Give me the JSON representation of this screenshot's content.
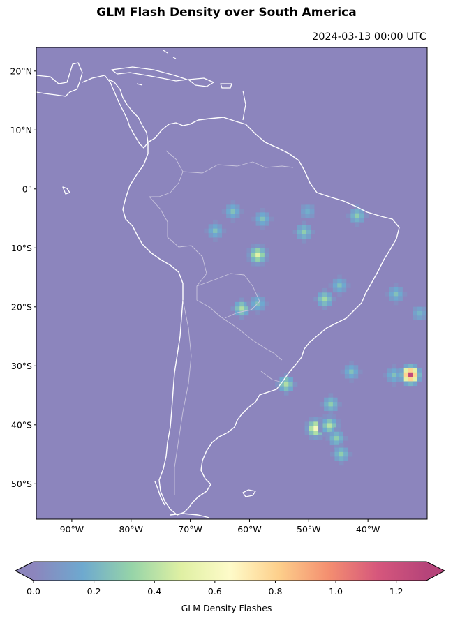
{
  "title": "GLM Flash Density over South America",
  "subtitle": "2024-03-13 00:00 UTC",
  "map": {
    "extent": {
      "lon_min": -96,
      "lon_max": -30,
      "lat_min": -56,
      "lat_max": 24
    },
    "background_color": "#8c85bd",
    "coastline_color": "#ffffff",
    "border_color": "#c9c5dd",
    "lat_ticks": [
      {
        "value": 20,
        "label": "20°N"
      },
      {
        "value": 10,
        "label": "10°N"
      },
      {
        "value": 0,
        "label": "0°"
      },
      {
        "value": -10,
        "label": "10°S"
      },
      {
        "value": -20,
        "label": "20°S"
      },
      {
        "value": -30,
        "label": "30°S"
      },
      {
        "value": -40,
        "label": "40°S"
      },
      {
        "value": -50,
        "label": "50°S"
      }
    ],
    "lon_ticks": [
      {
        "value": -90,
        "label": "90°W"
      },
      {
        "value": -80,
        "label": "80°W"
      },
      {
        "value": -70,
        "label": "70°W"
      },
      {
        "value": -60,
        "label": "60°W"
      },
      {
        "value": -50,
        "label": "50°W"
      },
      {
        "value": -40,
        "label": "40°W"
      }
    ],
    "flash_cells": [
      {
        "lon": -62.8,
        "lat": -3.8,
        "value": 0.25
      },
      {
        "lon": -57.8,
        "lat": -5.1,
        "value": 0.25
      },
      {
        "lon": -65.8,
        "lat": -7.1,
        "value": 0.25
      },
      {
        "lon": -58.6,
        "lat": -11.2,
        "value": 0.5
      },
      {
        "lon": -50.2,
        "lat": -3.8,
        "value": 0.18
      },
      {
        "lon": -50.8,
        "lat": -7.3,
        "value": 0.3
      },
      {
        "lon": -41.8,
        "lat": -4.5,
        "value": 0.3
      },
      {
        "lon": -44.8,
        "lat": -16.4,
        "value": 0.25
      },
      {
        "lon": -35.3,
        "lat": -17.8,
        "value": 0.25
      },
      {
        "lon": -31.3,
        "lat": -21.1,
        "value": 0.2
      },
      {
        "lon": -47.3,
        "lat": -18.7,
        "value": 0.35
      },
      {
        "lon": -61.3,
        "lat": -20.3,
        "value": 0.38
      },
      {
        "lon": -58.6,
        "lat": -19.5,
        "value": 0.25
      },
      {
        "lon": -42.8,
        "lat": -31.0,
        "value": 0.25
      },
      {
        "lon": -35.6,
        "lat": -31.6,
        "value": 0.25
      },
      {
        "lon": -32.8,
        "lat": -31.5,
        "value": 1.25
      },
      {
        "lon": -53.8,
        "lat": -33.1,
        "value": 0.38
      },
      {
        "lon": -46.3,
        "lat": -36.5,
        "value": 0.3
      },
      {
        "lon": -48.8,
        "lat": -40.6,
        "value": 0.6
      },
      {
        "lon": -46.5,
        "lat": -40.1,
        "value": 0.4
      },
      {
        "lon": -45.3,
        "lat": -42.3,
        "value": 0.3
      },
      {
        "lon": -44.5,
        "lat": -45.0,
        "value": 0.3
      }
    ]
  },
  "colorbar": {
    "label": "GLM Density Flashes",
    "vmin": 0.0,
    "vmax": 1.3,
    "ticks": [
      {
        "value": 0.0,
        "label": "0.0"
      },
      {
        "value": 0.2,
        "label": "0.2"
      },
      {
        "value": 0.4,
        "label": "0.4"
      },
      {
        "value": 0.6,
        "label": "0.6"
      },
      {
        "value": 0.8,
        "label": "0.8"
      },
      {
        "value": 1.0,
        "label": "1.0"
      },
      {
        "value": 1.2,
        "label": "1.2"
      }
    ],
    "colors": [
      "#8c85bd",
      "#6ea9cf",
      "#96d4a8",
      "#dff0a3",
      "#fefbc9",
      "#fdcf8b",
      "#f48f70",
      "#d6577c",
      "#b6447a"
    ],
    "extend": "both"
  }
}
